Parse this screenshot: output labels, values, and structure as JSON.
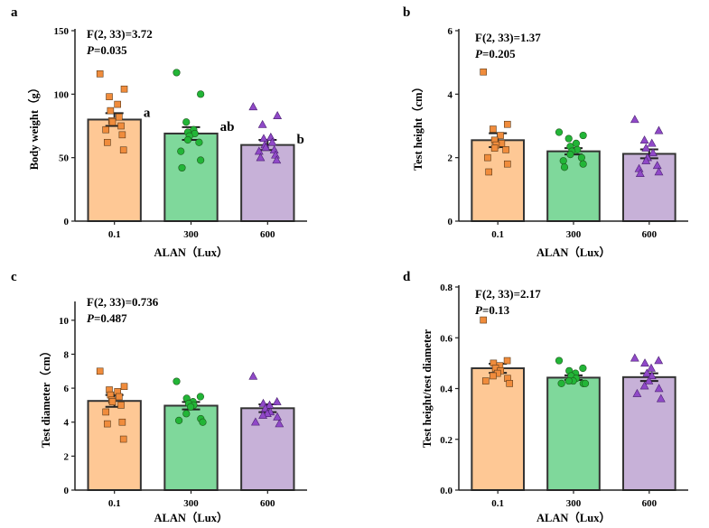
{
  "figure": {
    "colors": {
      "0.1": "#FEC895",
      "300": "#7FD89B",
      "600": "#C7B1D8"
    },
    "marker_colors": {
      "0.1": "#F08C3C",
      "300": "#22B537",
      "600": "#9049C8"
    },
    "marker_shapes": {
      "0.1": "square",
      "300": "circle",
      "600": "triangle"
    }
  },
  "chart_data": [
    {
      "panel": "a",
      "type": "bar",
      "categories": [
        "0.1",
        "300",
        "600"
      ],
      "values": [
        80,
        69,
        60
      ],
      "sem": [
        5,
        5,
        4
      ],
      "points": [
        [
          116,
          104,
          98,
          92,
          87,
          82,
          79,
          78,
          75,
          72,
          68,
          62,
          56
        ],
        [
          117,
          100,
          78,
          72,
          70,
          69,
          67,
          64,
          62,
          55,
          48,
          42
        ],
        [
          90,
          83,
          76,
          66,
          65,
          62,
          60,
          58,
          56,
          55,
          52,
          50,
          48
        ]
      ],
      "significance": [
        "a",
        "ab",
        "b"
      ],
      "stat_line1": "F(2, 33)=3.72",
      "stat_p_label": "P",
      "stat_p_value": "=0.035",
      "xlabel": "ALAN（Lux）",
      "ylabel": "Body weight（g）",
      "ylim": [
        0,
        150
      ],
      "yticks": [
        0,
        50,
        100,
        150
      ]
    },
    {
      "panel": "b",
      "type": "bar",
      "categories": [
        "0.1",
        "300",
        "600"
      ],
      "values": [
        2.55,
        2.2,
        2.12
      ],
      "sem": [
        0.22,
        0.1,
        0.14
      ],
      "points": [
        [
          4.7,
          3.05,
          2.9,
          2.7,
          2.55,
          2.45,
          2.4,
          2.3,
          2.25,
          2.0,
          1.8,
          1.55
        ],
        [
          2.8,
          2.7,
          2.6,
          2.45,
          2.35,
          2.25,
          2.2,
          2.1,
          2.0,
          1.9,
          1.8,
          1.7
        ],
        [
          3.2,
          2.85,
          2.55,
          2.45,
          2.3,
          2.15,
          2.0,
          1.9,
          1.75,
          1.65,
          1.55,
          1.5
        ]
      ],
      "significance": [],
      "stat_line1": "F(2, 33)=1.37",
      "stat_p_label": "P",
      "stat_p_value": "=0.205",
      "xlabel": "ALAN（Lux）",
      "ylabel": "Test height（cm）",
      "ylim": [
        0,
        6
      ],
      "yticks": [
        0,
        2,
        4,
        6
      ]
    },
    {
      "panel": "c",
      "type": "bar",
      "categories": [
        "0.1",
        "300",
        "600"
      ],
      "values": [
        5.25,
        4.97,
        4.82
      ],
      "sem": [
        0.35,
        0.22,
        0.23
      ],
      "points": [
        [
          7.0,
          6.1,
          5.9,
          5.8,
          5.6,
          5.5,
          5.3,
          5.2,
          5.0,
          4.6,
          4.0,
          3.9,
          3.0
        ],
        [
          6.4,
          5.5,
          5.4,
          5.2,
          5.1,
          5.0,
          4.9,
          4.5,
          4.2,
          4.1,
          4.0
        ],
        [
          6.7,
          5.2,
          5.1,
          5.0,
          4.8,
          4.6,
          4.5,
          4.4,
          4.3,
          4.0,
          3.9
        ]
      ],
      "significance": [],
      "stat_line1": "F(2, 33)=0.736",
      "stat_p_label": "P",
      "stat_p_value": "=0.487",
      "xlabel": "ALAN（Lux）",
      "ylabel": "Test diameter（cm）",
      "ylim": [
        0,
        11
      ],
      "yticks": [
        0,
        2,
        4,
        6,
        8,
        10
      ]
    },
    {
      "panel": "d",
      "type": "bar",
      "categories": [
        "0.1",
        "300",
        "600"
      ],
      "values": [
        0.48,
        0.443,
        0.445
      ],
      "sem": [
        0.018,
        0.009,
        0.015
      ],
      "points": [
        [
          0.67,
          0.51,
          0.5,
          0.49,
          0.48,
          0.47,
          0.46,
          0.45,
          0.44,
          0.43,
          0.42
        ],
        [
          0.51,
          0.48,
          0.47,
          0.46,
          0.45,
          0.44,
          0.43,
          0.43,
          0.42,
          0.42,
          0.42
        ],
        [
          0.52,
          0.51,
          0.5,
          0.48,
          0.46,
          0.45,
          0.43,
          0.41,
          0.4,
          0.38,
          0.36
        ]
      ],
      "significance": [],
      "stat_line1": "F(2, 33)=2.17",
      "stat_p_label": "P",
      "stat_p_value": "=0.13",
      "xlabel": "ALAN（Lux）",
      "ylabel": "Test height/test diameter",
      "ylim": [
        0,
        0.8
      ],
      "yticks": [
        0.0,
        0.2,
        0.4,
        0.6,
        0.8
      ]
    }
  ]
}
